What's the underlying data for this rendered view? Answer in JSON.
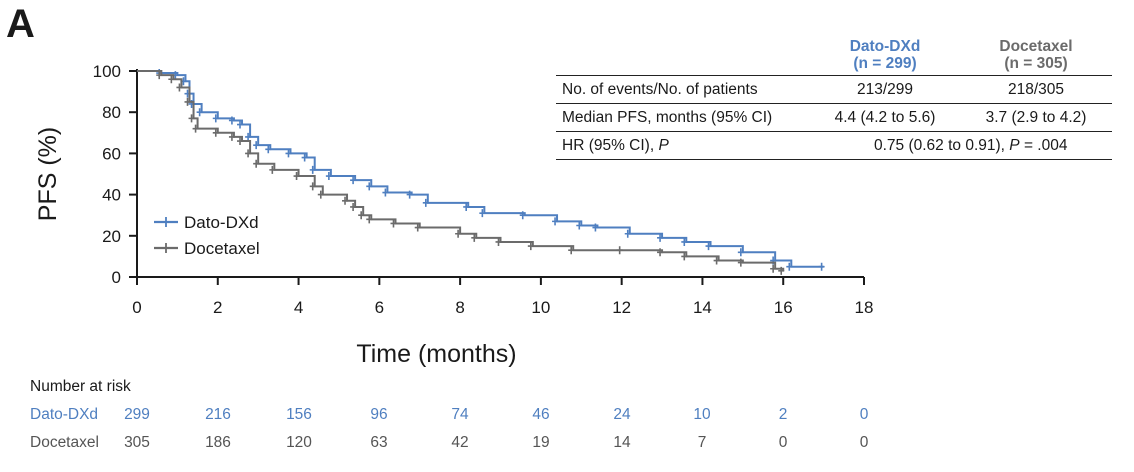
{
  "panel_label": "A",
  "colors": {
    "dato": "#4f7fc0",
    "doce": "#6b6b6b",
    "axis": "#1a1a1a"
  },
  "stats_table": {
    "headers": {
      "dato_line1": "Dato-DXd",
      "dato_line2": "(n = 299)",
      "doce_line1": "Docetaxel",
      "doce_line2": "(n = 305)"
    },
    "rows": [
      {
        "label": "No. of events/No. of patients",
        "dato": "213/299",
        "doce": "218/305"
      },
      {
        "label": "Median PFS, months (95% CI)",
        "dato": "4.4 (4.2 to 5.6)",
        "doce": "3.7 (2.9 to 4.2)"
      }
    ],
    "hr_label": "HR (95% CI), P",
    "hr_value": "0.75 (0.62 to 0.91), P = .004"
  },
  "risk_table": {
    "title": "Number at risk",
    "rows": [
      {
        "name": "Dato-DXd",
        "values": [
          "299",
          "216",
          "156",
          "96",
          "74",
          "46",
          "24",
          "10",
          "2",
          "0"
        ]
      },
      {
        "name": "Docetaxel",
        "values": [
          "305",
          "186",
          "120",
          "63",
          "42",
          "19",
          "14",
          "7",
          "0",
          "0"
        ]
      }
    ]
  },
  "chart_data": {
    "type": "line",
    "xlabel": "Time (months)",
    "ylabel": "PFS (%)",
    "xlim": [
      0,
      18
    ],
    "ylim": [
      0,
      100
    ],
    "xticks": [
      0,
      2,
      4,
      6,
      8,
      10,
      12,
      14,
      16,
      18
    ],
    "yticks": [
      0,
      20,
      40,
      60,
      80,
      100
    ],
    "grid": false,
    "legend": "center-left",
    "series": [
      {
        "name": "Dato-DXd",
        "x": [
          0,
          0.6,
          1.0,
          1.2,
          1.3,
          1.4,
          1.6,
          2.0,
          2.4,
          2.6,
          2.8,
          3.0,
          3.3,
          3.8,
          4.2,
          4.4,
          4.8,
          5.4,
          5.8,
          6.2,
          6.8,
          7.2,
          8.2,
          8.6,
          9.6,
          10.4,
          11.0,
          11.4,
          12.2,
          13.0,
          13.6,
          14.2,
          15.0,
          15.8,
          16.2,
          17.0
        ],
        "y": [
          100,
          99,
          98,
          95,
          89,
          84,
          80,
          77,
          76,
          74,
          68,
          64,
          62,
          60,
          58,
          52,
          49,
          47,
          44,
          41,
          40,
          36,
          34,
          31,
          30,
          27,
          25,
          24,
          21,
          19,
          17,
          15,
          12,
          8,
          5,
          5
        ]
      },
      {
        "name": "Docetaxel",
        "x": [
          0,
          0.6,
          0.9,
          1.1,
          1.3,
          1.4,
          1.5,
          2.0,
          2.4,
          2.6,
          2.8,
          3.0,
          3.4,
          4.0,
          4.4,
          4.6,
          5.2,
          5.4,
          5.6,
          5.8,
          6.4,
          7.0,
          8.0,
          8.4,
          9.0,
          9.8,
          10.8,
          12.0,
          13.0,
          13.6,
          14.4,
          15.0,
          15.8,
          16.0
        ],
        "y": [
          100,
          98,
          96,
          92,
          85,
          77,
          72,
          70,
          68,
          66,
          60,
          55,
          52,
          49,
          44,
          40,
          37,
          34,
          30,
          28,
          26,
          24,
          21,
          19,
          17,
          15,
          13,
          13,
          12,
          10,
          8,
          7,
          4,
          3
        ]
      }
    ]
  }
}
